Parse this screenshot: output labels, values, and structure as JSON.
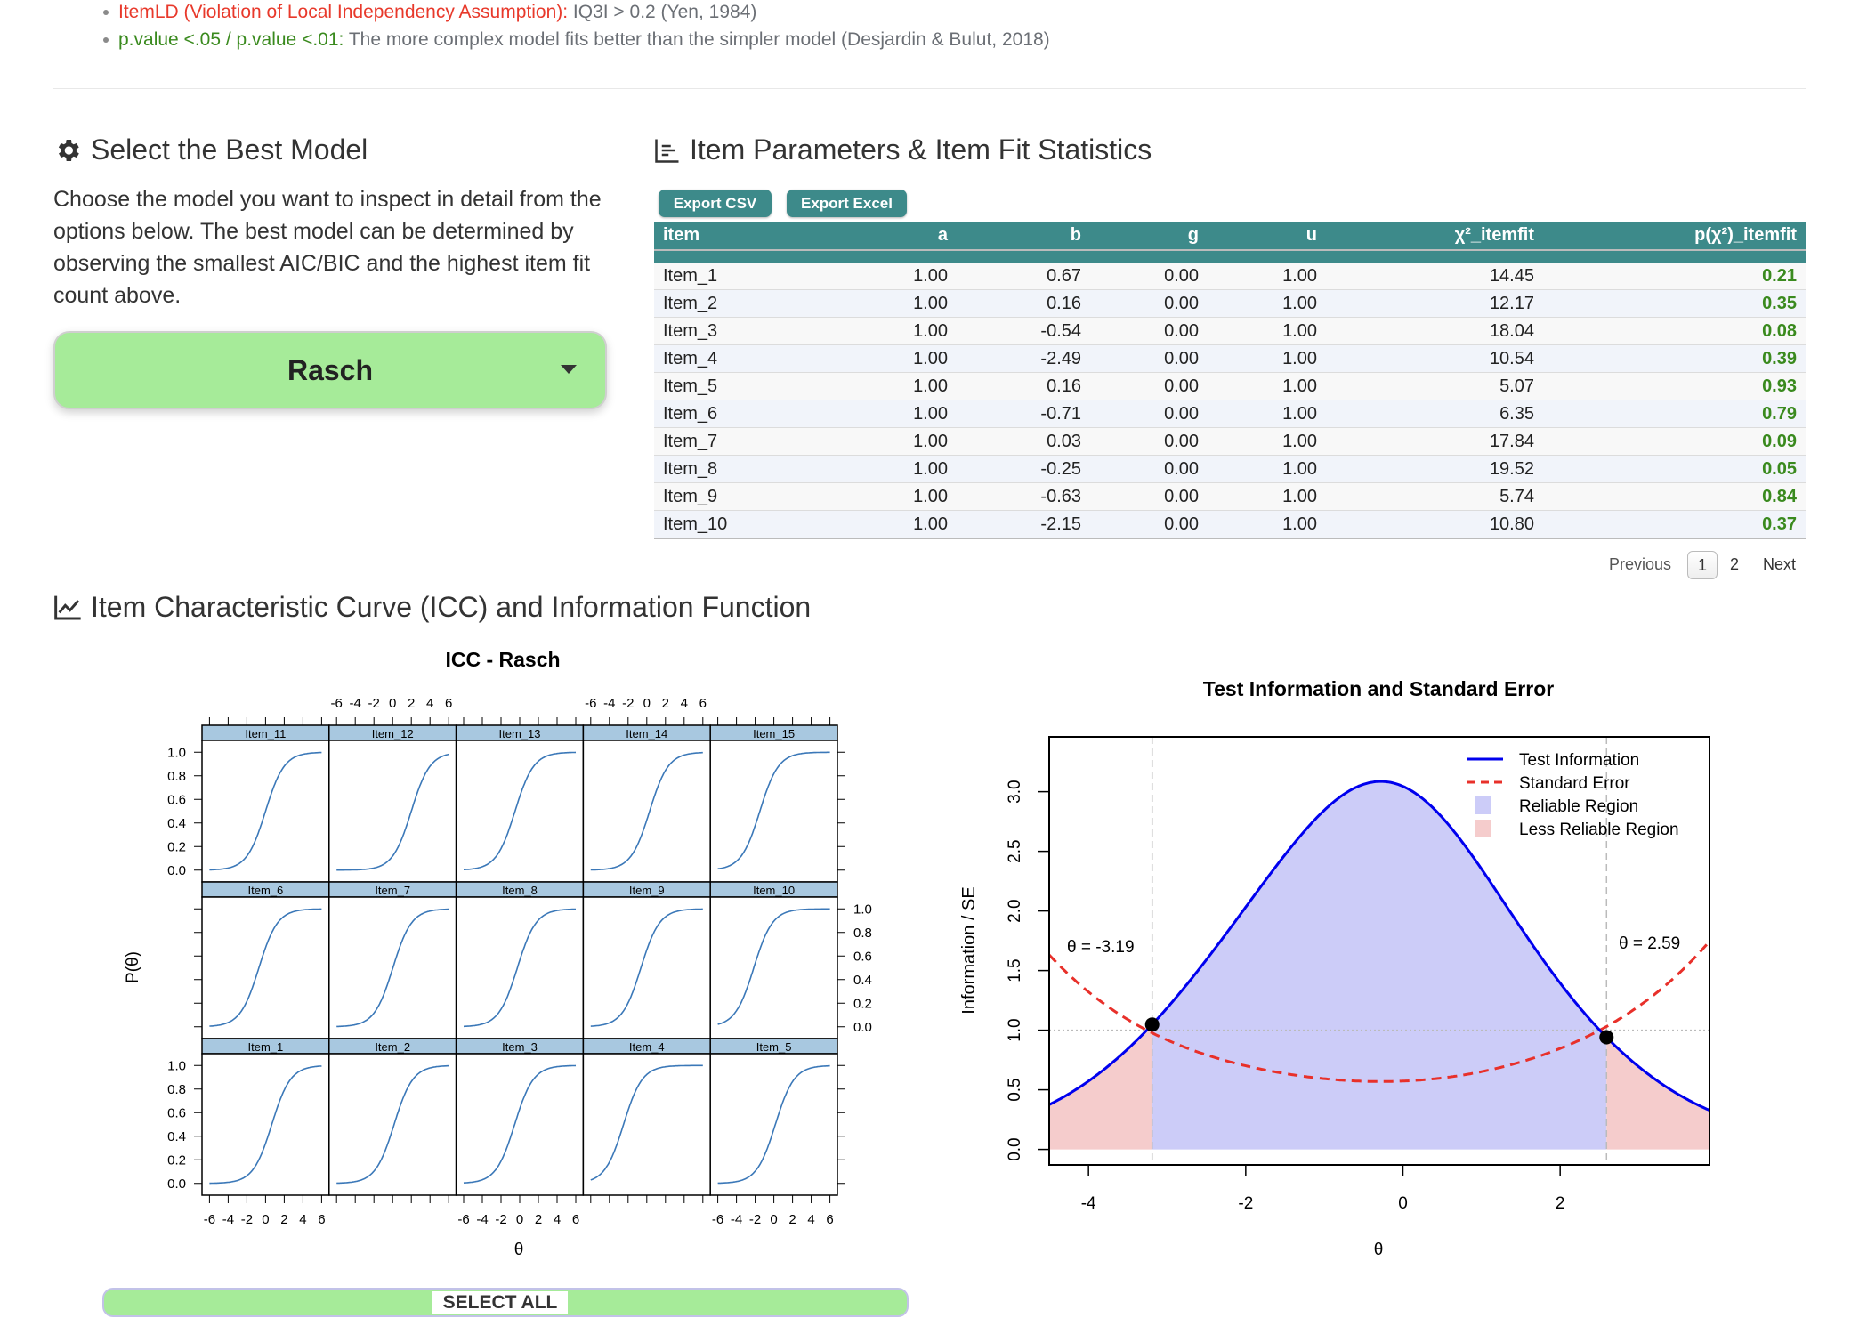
{
  "notes": [
    {
      "label": "ItemLD (Violation of Local Independency Assumption):",
      "text": " IQ3I > 0.2 (Yen, 1984)",
      "label_color": "#e8392b"
    },
    {
      "label": "p.value <.05 / p.value <.01:",
      "text": " The more complex model fits better than the simpler model (Desjardin & Bulut, 2018)",
      "label_color": "#3a8a1e"
    }
  ],
  "model_section": {
    "icon": "gear-icon",
    "title": "Select the Best Model",
    "description": "Choose the model you want to inspect in detail from the options below. The best model can be determined by observing the smallest AIC/BIC and the highest item fit count above.",
    "selected_model": "Rasch"
  },
  "params_section": {
    "icon": "table-chart-icon",
    "title": "Item Parameters & Item Fit Statistics",
    "export_csv": "Export CSV",
    "export_excel": "Export Excel",
    "columns": [
      "item",
      "a",
      "b",
      "g",
      "u",
      "χ²_itemfit",
      "p(χ²)_itemfit"
    ],
    "rows": [
      [
        "Item_1",
        "1.00",
        "0.67",
        "0.00",
        "1.00",
        "14.45",
        "0.21"
      ],
      [
        "Item_2",
        "1.00",
        "0.16",
        "0.00",
        "1.00",
        "12.17",
        "0.35"
      ],
      [
        "Item_3",
        "1.00",
        "-0.54",
        "0.00",
        "1.00",
        "18.04",
        "0.08"
      ],
      [
        "Item_4",
        "1.00",
        "-2.49",
        "0.00",
        "1.00",
        "10.54",
        "0.39"
      ],
      [
        "Item_5",
        "1.00",
        "0.16",
        "0.00",
        "1.00",
        "5.07",
        "0.93"
      ],
      [
        "Item_6",
        "1.00",
        "-0.71",
        "0.00",
        "1.00",
        "6.35",
        "0.79"
      ],
      [
        "Item_7",
        "1.00",
        "0.03",
        "0.00",
        "1.00",
        "17.84",
        "0.09"
      ],
      [
        "Item_8",
        "1.00",
        "-0.25",
        "0.00",
        "1.00",
        "19.52",
        "0.05"
      ],
      [
        "Item_9",
        "1.00",
        "-0.63",
        "0.00",
        "1.00",
        "5.74",
        "0.84"
      ],
      [
        "Item_10",
        "1.00",
        "-2.15",
        "0.00",
        "1.00",
        "10.80",
        "0.37"
      ]
    ],
    "pagination": {
      "previous": "Previous",
      "pages": [
        "1",
        "2"
      ],
      "current": "1",
      "next": "Next"
    }
  },
  "icc_section": {
    "icon": "line-chart-icon",
    "title": "Item Characteristic Curve (ICC) and Information Function",
    "select_all": "SELECT ALL"
  },
  "chart_data": [
    {
      "type": "line",
      "title": "ICC - Rasch",
      "xlabel": "θ",
      "ylabel": "P(θ)",
      "xlim": [
        -6,
        6
      ],
      "ylim": [
        0,
        1
      ],
      "xticks": [
        "-6",
        "-4",
        "-2",
        "0",
        "2",
        "4",
        "6"
      ],
      "yticks": [
        "0.0",
        "0.2",
        "0.4",
        "0.6",
        "0.8",
        "1.0"
      ],
      "curve_color": "#3b78b8",
      "strip_color": "#a8c8e0",
      "panel_rows": [
        [
          "Item_11",
          "Item_12",
          "Item_13",
          "Item_14",
          "Item_15"
        ],
        [
          "Item_6",
          "Item_7",
          "Item_8",
          "Item_9",
          "Item_10"
        ],
        [
          "Item_1",
          "Item_2",
          "Item_3",
          "Item_4",
          "Item_5"
        ]
      ],
      "series": [
        {
          "name": "Item_1",
          "a": 1,
          "b": 0.67
        },
        {
          "name": "Item_2",
          "a": 1,
          "b": 0.16
        },
        {
          "name": "Item_3",
          "a": 1,
          "b": -0.54
        },
        {
          "name": "Item_4",
          "a": 1,
          "b": -2.49
        },
        {
          "name": "Item_5",
          "a": 1,
          "b": 0.16
        },
        {
          "name": "Item_6",
          "a": 1,
          "b": -0.71
        },
        {
          "name": "Item_7",
          "a": 1,
          "b": 0.03
        },
        {
          "name": "Item_8",
          "a": 1,
          "b": -0.25
        },
        {
          "name": "Item_9",
          "a": 1,
          "b": -0.63
        },
        {
          "name": "Item_10",
          "a": 1,
          "b": -2.15
        },
        {
          "name": "Item_11",
          "a": 1,
          "b": 0.0
        },
        {
          "name": "Item_12",
          "a": 1,
          "b": 2.0
        },
        {
          "name": "Item_13",
          "a": 1,
          "b": -0.5
        },
        {
          "name": "Item_14",
          "a": 1,
          "b": 0.3
        },
        {
          "name": "Item_15",
          "a": 1,
          "b": -1.5
        }
      ]
    },
    {
      "type": "line",
      "title": "Test Information and Standard Error",
      "xlabel": "θ",
      "ylabel": "Information / SE",
      "xlim": [
        -4.5,
        3.9
      ],
      "ylim": [
        0,
        3.3
      ],
      "xticks": [
        "-4",
        "-2",
        "0",
        "2"
      ],
      "yticks": [
        "0.0",
        "0.5",
        "1.0",
        "1.5",
        "2.0",
        "2.5",
        "3.0"
      ],
      "series": [
        {
          "name": "Test Information",
          "color": "#0000ee",
          "style": "solid"
        },
        {
          "name": "Standard Error",
          "color": "#e8302a",
          "style": "dashed"
        }
      ],
      "regions": [
        {
          "name": "Reliable Region",
          "color": "#ccccf8"
        },
        {
          "name": "Less Reliable Region",
          "color": "#f5cccc"
        }
      ],
      "reliability_threshold": 1.0,
      "crossings": [
        {
          "theta": -3.19,
          "label": "θ = -3.19"
        },
        {
          "theta": 2.59,
          "label": "θ = 2.59"
        }
      ],
      "legend_position": "top-right"
    }
  ]
}
